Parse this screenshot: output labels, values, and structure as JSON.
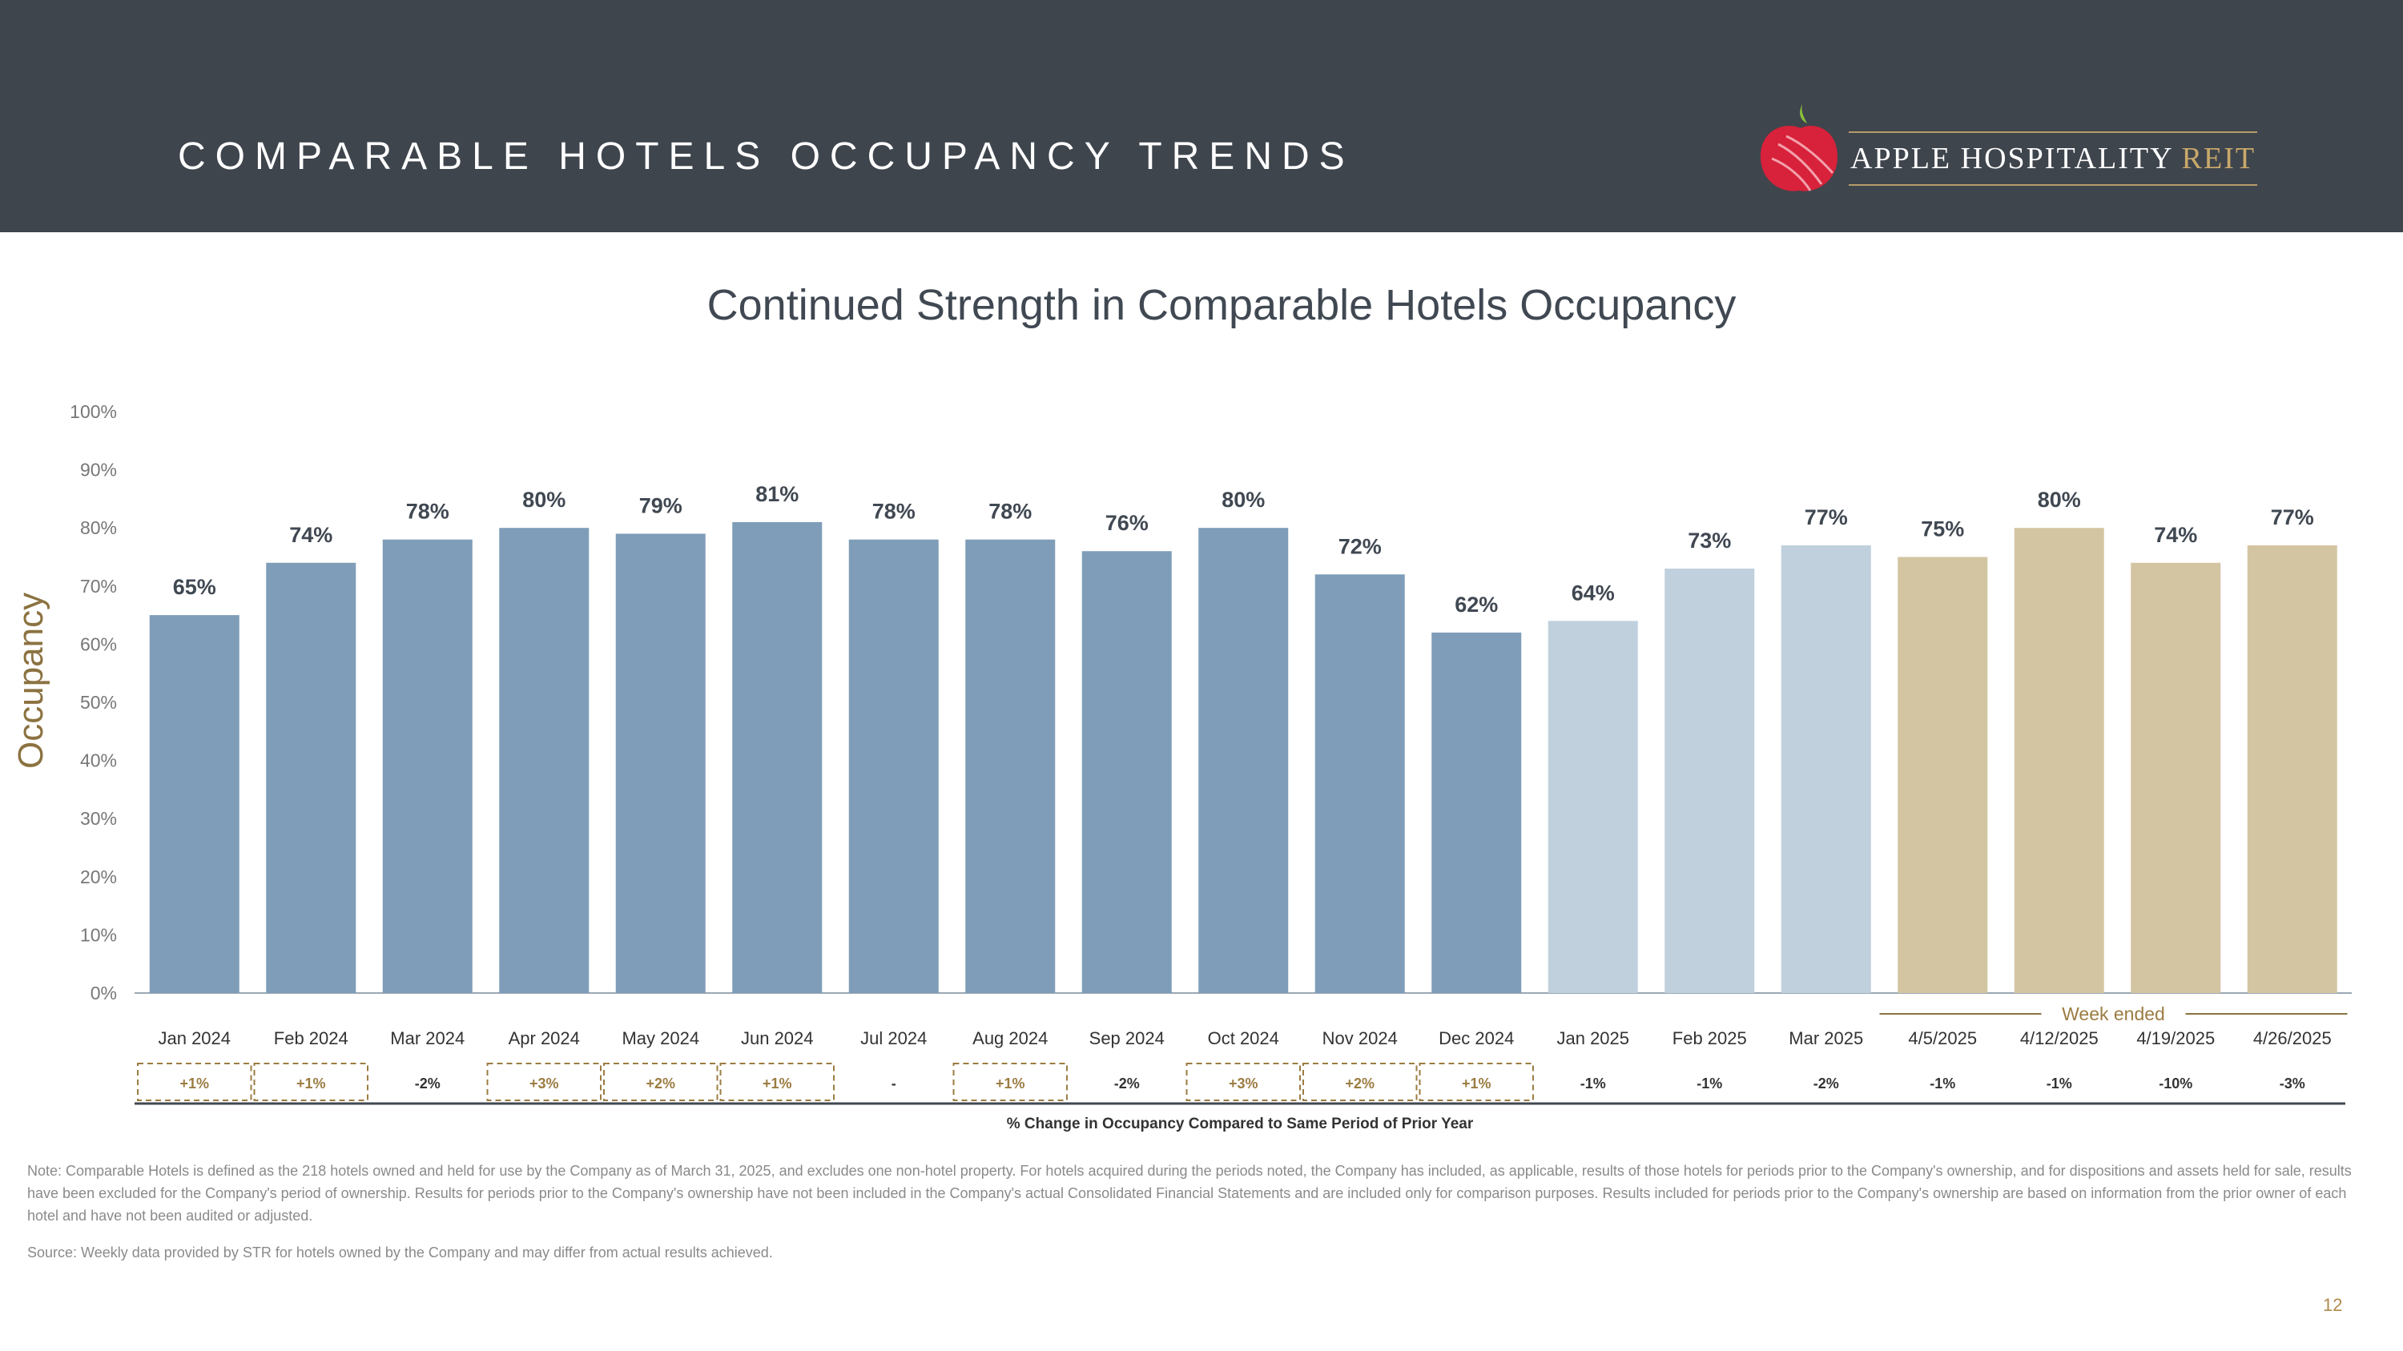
{
  "header": {
    "title": "COMPARABLE HOTELS OCCUPANCY TRENDS",
    "logo_name": "APPLE HOSPITALITY",
    "logo_suffix": "REIT"
  },
  "colors": {
    "header_bg": "#3f454d",
    "bar_2024": "#7f9db8",
    "bar_2025_monthly": "#c0d0dd",
    "bar_weekly": "#d4c5a2",
    "accent_gold": "#8b7240",
    "positive_text": "#9b7c42",
    "negative_text": "#333333"
  },
  "chart_data": {
    "type": "bar",
    "title": "Continued Strength in Comparable Hotels Occupancy",
    "ylabel": "Occupancy",
    "xlabel": "% Change in Occupancy Compared to Same Period of Prior Year",
    "ylim": [
      0,
      100
    ],
    "yticks": [
      "0%",
      "10%",
      "20%",
      "30%",
      "40%",
      "50%",
      "60%",
      "70%",
      "80%",
      "90%",
      "100%"
    ],
    "categories": [
      "Jan 2024",
      "Feb 2024",
      "Mar 2024",
      "Apr 2024",
      "May 2024",
      "Jun 2024",
      "Jul 2024",
      "Aug 2024",
      "Sep 2024",
      "Oct 2024",
      "Nov 2024",
      "Dec 2024",
      "Jan 2025",
      "Feb 2025",
      "Mar 2025",
      "4/5/2025",
      "4/12/2025",
      "4/19/2025",
      "4/26/2025"
    ],
    "values": [
      65,
      74,
      78,
      80,
      79,
      81,
      78,
      78,
      76,
      80,
      72,
      62,
      64,
      73,
      77,
      75,
      80,
      74,
      77
    ],
    "data_labels": [
      "65%",
      "74%",
      "78%",
      "80%",
      "79%",
      "81%",
      "78%",
      "78%",
      "76%",
      "80%",
      "72%",
      "62%",
      "64%",
      "73%",
      "77%",
      "75%",
      "80%",
      "74%",
      "77%"
    ],
    "bar_groups": [
      "2024",
      "2024",
      "2024",
      "2024",
      "2024",
      "2024",
      "2024",
      "2024",
      "2024",
      "2024",
      "2024",
      "2024",
      "2025",
      "2025",
      "2025",
      "week",
      "week",
      "week",
      "week"
    ],
    "changes": [
      "+1%",
      "+1%",
      "-2%",
      "+3%",
      "+2%",
      "+1%",
      "-",
      "+1%",
      "-2%",
      "+3%",
      "+2%",
      "+1%",
      "-1%",
      "-1%",
      "-2%",
      "-1%",
      "-1%",
      "-10%",
      "-3%"
    ],
    "week_ended_label": "Week ended"
  },
  "footer": {
    "note": "Note: Comparable Hotels is defined as the 218 hotels owned and held for use by the Company as of March 31, 2025, and excludes one non-hotel property. For hotels acquired during the periods noted, the Company has included, as applicable, results of those hotels for periods prior to the Company's ownership, and for dispositions and assets held for sale, results have been excluded for the Company's period of ownership. Results for periods prior to the Company's ownership have not been included in the Company's actual Consolidated Financial Statements and are included only for comparison purposes. Results included for periods prior to the Company's ownership are based on information from the prior owner of each hotel and have not been audited or adjusted.",
    "source": "Source:  Weekly data provided by STR for hotels owned by the Company and may differ from actual results achieved.",
    "page_number": "12"
  }
}
